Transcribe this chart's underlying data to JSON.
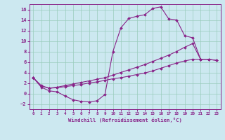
{
  "xlabel": "Windchill (Refroidissement éolien,°C)",
  "background_color": "#cce8f0",
  "grid_color": "#99ccbb",
  "line_color": "#882288",
  "xlim": [
    -0.5,
    23.5
  ],
  "ylim": [
    -3.0,
    17.0
  ],
  "xticks": [
    0,
    1,
    2,
    3,
    4,
    5,
    6,
    7,
    8,
    9,
    10,
    11,
    12,
    13,
    14,
    15,
    16,
    17,
    18,
    19,
    20,
    21,
    22,
    23
  ],
  "yticks": [
    -2,
    0,
    2,
    4,
    6,
    8,
    10,
    12,
    14,
    16
  ],
  "curve1_x": [
    0,
    1,
    2,
    3,
    4,
    5,
    6,
    7,
    8,
    9,
    10,
    11,
    12,
    13,
    14,
    15,
    16,
    17,
    18,
    19,
    20,
    21
  ],
  "curve1_y": [
    3.0,
    1.2,
    0.5,
    0.3,
    -0.5,
    -1.2,
    -1.5,
    -1.6,
    -1.4,
    -0.2,
    8.0,
    12.5,
    14.3,
    14.7,
    15.0,
    16.2,
    16.5,
    14.2,
    14.0,
    11.0,
    10.6,
    6.5
  ],
  "curve2_x": [
    0,
    1,
    2,
    3,
    4,
    5,
    6,
    7,
    8,
    9,
    10,
    11,
    12,
    13,
    14,
    15,
    16,
    17,
    18,
    19,
    20,
    21,
    22,
    23
  ],
  "curve2_y": [
    3.0,
    1.4,
    1.0,
    1.1,
    1.3,
    1.5,
    1.7,
    2.0,
    2.2,
    2.5,
    2.8,
    3.0,
    3.3,
    3.6,
    3.9,
    4.3,
    4.8,
    5.3,
    5.8,
    6.2,
    6.5,
    6.5,
    6.5,
    6.3
  ],
  "curve3_x": [
    0,
    1,
    2,
    3,
    4,
    5,
    6,
    7,
    8,
    9,
    10,
    11,
    12,
    13,
    14,
    15,
    16,
    17,
    18,
    19,
    20,
    21,
    22,
    23
  ],
  "curve3_y": [
    3.0,
    1.5,
    1.0,
    1.2,
    1.5,
    1.8,
    2.1,
    2.4,
    2.7,
    3.0,
    3.5,
    4.0,
    4.5,
    5.0,
    5.5,
    6.1,
    6.7,
    7.3,
    8.0,
    8.8,
    9.5,
    6.5,
    6.5,
    6.3
  ]
}
